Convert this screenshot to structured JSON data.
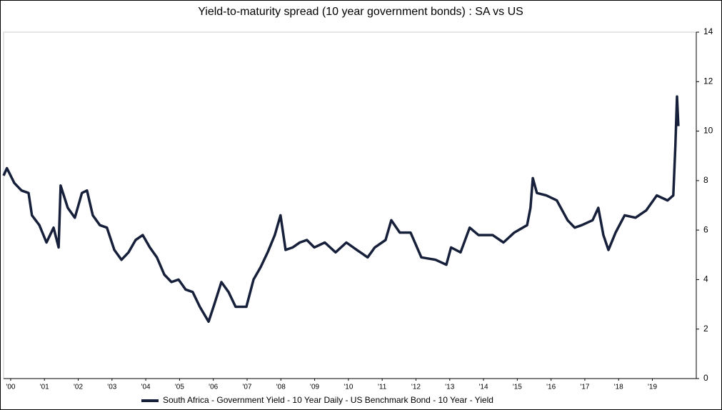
{
  "chart_data": {
    "type": "line",
    "title": "Yield-to-maturity spread (10 year government bonds) : SA vs US",
    "x": [
      2000.29,
      2000.39,
      2000.61,
      2000.82,
      2001.03,
      2001.13,
      2001.35,
      2001.56,
      2001.77,
      2001.92,
      2001.98,
      2002.19,
      2002.4,
      2002.61,
      2002.76,
      2002.93,
      2003.14,
      2003.35,
      2003.57,
      2003.78,
      2003.99,
      2004.2,
      2004.41,
      2004.62,
      2004.83,
      2005.05,
      2005.26,
      2005.47,
      2005.68,
      2005.89,
      2006.1,
      2006.36,
      2006.53,
      2006.74,
      2006.95,
      2007.16,
      2007.48,
      2007.69,
      2007.9,
      2008.11,
      2008.32,
      2008.49,
      2008.64,
      2008.85,
      2009.06,
      2009.27,
      2009.49,
      2009.8,
      2010.12,
      2010.44,
      2010.75,
      2011.07,
      2011.28,
      2011.6,
      2011.77,
      2012.02,
      2012.34,
      2012.66,
      2013.08,
      2013.4,
      2013.54,
      2013.82,
      2014.09,
      2014.35,
      2014.77,
      2015.09,
      2015.41,
      2015.79,
      2015.89,
      2015.96,
      2016.08,
      2016.36,
      2016.67,
      2016.99,
      2017.2,
      2017.41,
      2017.73,
      2017.9,
      2018.05,
      2018.2,
      2018.41,
      2018.68,
      2019.0,
      2019.32,
      2019.63,
      2019.95,
      2020.12,
      2020.18,
      2020.23,
      2020.27
    ],
    "series": [
      {
        "name": "South Africa - Government Yield - 10 Year Daily - US Benchmark Bond - 10 Year - Yield",
        "color": "#17203a",
        "values": [
          8.2,
          8.5,
          7.9,
          7.6,
          7.5,
          6.6,
          6.2,
          5.5,
          6.1,
          5.3,
          7.8,
          6.9,
          6.5,
          7.5,
          7.6,
          6.6,
          6.2,
          6.1,
          5.2,
          4.8,
          5.1,
          5.6,
          5.8,
          5.3,
          4.9,
          4.2,
          3.9,
          4.0,
          3.6,
          3.5,
          2.9,
          2.3,
          3.0,
          3.9,
          3.5,
          2.9,
          2.9,
          4.0,
          4.5,
          5.1,
          5.8,
          6.6,
          5.2,
          5.3,
          5.5,
          5.6,
          5.3,
          5.5,
          5.1,
          5.5,
          5.2,
          4.9,
          5.3,
          5.6,
          6.4,
          5.9,
          5.9,
          4.9,
          4.8,
          4.6,
          5.3,
          5.1,
          6.1,
          5.8,
          5.8,
          5.5,
          5.9,
          6.2,
          6.9,
          8.1,
          7.5,
          7.4,
          7.2,
          6.4,
          6.1,
          6.2,
          6.4,
          6.9,
          5.8,
          5.2,
          5.9,
          6.6,
          6.5,
          6.8,
          7.4,
          7.2,
          7.4,
          9.4,
          11.4,
          10.2
        ]
      }
    ],
    "xlim": [
      2000.29,
      2020.8
    ],
    "xticks": [
      {
        "value": 2000.5,
        "label": "'00"
      },
      {
        "value": 2001.5,
        "label": "'01"
      },
      {
        "value": 2002.5,
        "label": "'02"
      },
      {
        "value": 2003.5,
        "label": "'03"
      },
      {
        "value": 2004.5,
        "label": "'04"
      },
      {
        "value": 2005.5,
        "label": "'05"
      },
      {
        "value": 2006.5,
        "label": "'06"
      },
      {
        "value": 2007.5,
        "label": "'07"
      },
      {
        "value": 2008.5,
        "label": "'08"
      },
      {
        "value": 2009.5,
        "label": "'09"
      },
      {
        "value": 2010.5,
        "label": "'10"
      },
      {
        "value": 2011.5,
        "label": "'11"
      },
      {
        "value": 2012.5,
        "label": "'12"
      },
      {
        "value": 2013.5,
        "label": "'13"
      },
      {
        "value": 2014.5,
        "label": "'14"
      },
      {
        "value": 2015.5,
        "label": "'15"
      },
      {
        "value": 2016.5,
        "label": "'16"
      },
      {
        "value": 2017.5,
        "label": "'17"
      },
      {
        "value": 2018.5,
        "label": "'18"
      },
      {
        "value": 2019.5,
        "label": "'19"
      }
    ],
    "ylim": [
      0,
      14
    ],
    "yticks": [
      0,
      2,
      4,
      6,
      8,
      10,
      12,
      14
    ],
    "y_axis_side": "right"
  }
}
